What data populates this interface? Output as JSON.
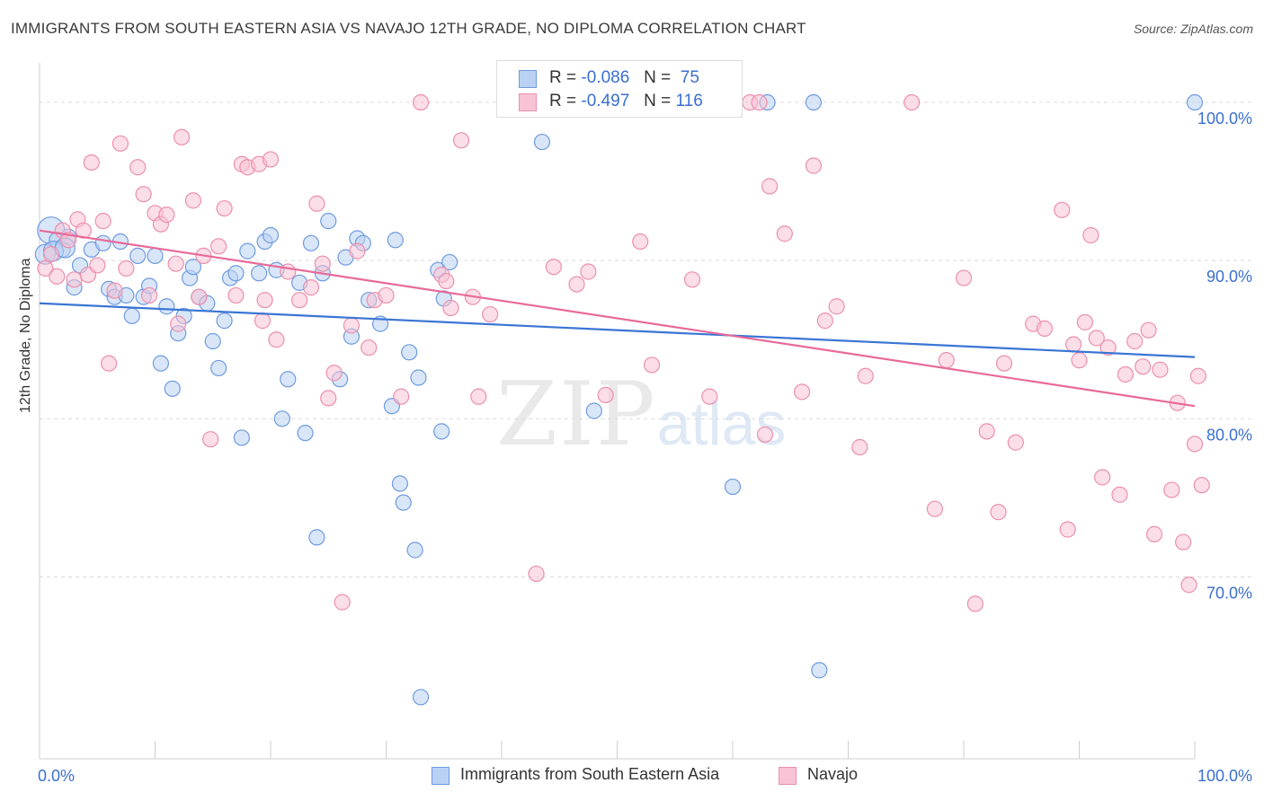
{
  "title": "IMMIGRANTS FROM SOUTH EASTERN ASIA VS NAVAJO 12TH GRADE, NO DIPLOMA CORRELATION CHART",
  "source": "Source: ZipAtlas.com",
  "watermark": {
    "zip": "ZIP",
    "atlas": "atlas"
  },
  "legend_top": {
    "rows": [
      {
        "r_label": "R =",
        "r_value": "-0.086",
        "n_label": "N =",
        "n_value": "75",
        "color": "#7aa7e8"
      },
      {
        "r_label": "R =",
        "r_value": "-0.497",
        "n_label": "N =",
        "n_value": "116",
        "color": "#f29bb8"
      }
    ]
  },
  "colors": {
    "blue_fill": "#b9d1f3",
    "blue_stroke": "#6e9be0",
    "blue_line": "#3a75d4",
    "pink_fill": "#f8c3d4",
    "pink_stroke": "#ec8fae",
    "pink_line": "#e8699a",
    "tick_label": "#3a6fd1",
    "grid": "#d9d9d9"
  },
  "chart_data": {
    "type": "scatter",
    "title": "IMMIGRANTS FROM SOUTH EASTERN ASIA VS NAVAJO 12TH GRADE, NO DIPLOMA CORRELATION CHART",
    "xlabel": "",
    "ylabel": "12th Grade, No Diploma",
    "xlim": [
      0,
      100
    ],
    "ylim": [
      58.5,
      102.5
    ],
    "x_tick_labels": [
      "0.0%",
      "100.0%"
    ],
    "y_ticks": [
      70,
      80,
      90,
      100
    ],
    "y_tick_labels": [
      "70.0%",
      "80.0%",
      "90.0%",
      "100.0%"
    ],
    "grid": true,
    "legend": "top-center",
    "series": [
      {
        "name": "Immigrants from South Eastern Asia",
        "color": "#6e9be0",
        "trend": {
          "x": [
            0,
            100
          ],
          "y": [
            87.3,
            83.9
          ]
        },
        "points": [
          [
            1,
            91.9
          ],
          [
            1.5,
            91.3
          ],
          [
            2,
            90.7
          ],
          [
            2.5,
            91.5
          ],
          [
            3,
            88.3
          ],
          [
            3.5,
            89.7
          ],
          [
            4.5,
            90.7
          ],
          [
            5.5,
            91.1
          ],
          [
            6,
            88.2
          ],
          [
            6.5,
            87.7
          ],
          [
            7,
            91.2
          ],
          [
            7.5,
            87.8
          ],
          [
            8,
            86.5
          ],
          [
            8.5,
            90.3
          ],
          [
            9,
            87.7
          ],
          [
            9.5,
            88.4
          ],
          [
            10,
            90.3
          ],
          [
            10.5,
            83.5
          ],
          [
            11,
            87.1
          ],
          [
            11.5,
            81.9
          ],
          [
            12,
            85.4
          ],
          [
            12.5,
            86.5
          ],
          [
            13,
            88.9
          ],
          [
            13.3,
            89.6
          ],
          [
            13.8,
            87.7
          ],
          [
            14.5,
            87.3
          ],
          [
            15,
            84.9
          ],
          [
            15.5,
            83.2
          ],
          [
            16,
            86.2
          ],
          [
            16.5,
            88.9
          ],
          [
            17,
            89.2
          ],
          [
            17.5,
            78.8
          ],
          [
            18,
            90.6
          ],
          [
            19,
            89.2
          ],
          [
            19.5,
            91.2
          ],
          [
            20,
            91.6
          ],
          [
            20.5,
            89.4
          ],
          [
            21,
            80.0
          ],
          [
            21.5,
            82.5
          ],
          [
            22.5,
            88.6
          ],
          [
            23,
            79.1
          ],
          [
            23.5,
            91.1
          ],
          [
            24,
            72.5
          ],
          [
            24.5,
            89.2
          ],
          [
            25,
            92.5
          ],
          [
            26,
            82.5
          ],
          [
            26.5,
            90.2
          ],
          [
            27,
            85.2
          ],
          [
            27.5,
            91.4
          ],
          [
            28,
            91.1
          ],
          [
            28.5,
            87.5
          ],
          [
            29.5,
            86.0
          ],
          [
            30.5,
            80.8
          ],
          [
            30.8,
            91.3
          ],
          [
            31.2,
            75.9
          ],
          [
            31.5,
            74.7
          ],
          [
            32,
            84.2
          ],
          [
            32.5,
            71.7
          ],
          [
            32.8,
            82.6
          ],
          [
            33,
            62.4
          ],
          [
            34.5,
            89.4
          ],
          [
            34.8,
            79.2
          ],
          [
            35,
            87.6
          ],
          [
            35.5,
            89.9
          ],
          [
            43.5,
            97.5
          ],
          [
            43.8,
            100.0
          ],
          [
            48,
            80.5
          ],
          [
            60,
            75.7
          ],
          [
            63,
            100.0
          ],
          [
            67,
            100.0
          ],
          [
            67.5,
            64.1
          ],
          [
            100,
            100.0
          ],
          [
            0.5,
            90.4
          ],
          [
            1.2,
            90.6
          ],
          [
            2.2,
            90.8
          ]
        ]
      },
      {
        "name": "Navajo",
        "color": "#ec8fae",
        "trend": {
          "x": [
            0,
            100
          ],
          "y": [
            91.9,
            80.8
          ]
        },
        "points": [
          [
            0.5,
            89.5
          ],
          [
            1,
            90.4
          ],
          [
            1.5,
            89.0
          ],
          [
            2,
            91.9
          ],
          [
            2.5,
            91.3
          ],
          [
            3,
            88.8
          ],
          [
            3.3,
            92.6
          ],
          [
            3.8,
            91.9
          ],
          [
            4.2,
            89.1
          ],
          [
            4.5,
            96.2
          ],
          [
            5,
            89.7
          ],
          [
            5.5,
            92.5
          ],
          [
            6,
            83.5
          ],
          [
            6.5,
            88.1
          ],
          [
            7,
            97.4
          ],
          [
            7.5,
            89.5
          ],
          [
            8.5,
            95.9
          ],
          [
            9,
            94.2
          ],
          [
            9.5,
            87.8
          ],
          [
            10,
            93.0
          ],
          [
            10.5,
            92.3
          ],
          [
            11,
            92.9
          ],
          [
            11.8,
            89.8
          ],
          [
            12,
            86.0
          ],
          [
            12.3,
            97.8
          ],
          [
            13.3,
            93.8
          ],
          [
            13.8,
            87.7
          ],
          [
            14.2,
            90.3
          ],
          [
            14.8,
            78.7
          ],
          [
            15.5,
            90.9
          ],
          [
            16,
            93.3
          ],
          [
            17,
            87.8
          ],
          [
            17.5,
            96.1
          ],
          [
            18,
            95.9
          ],
          [
            19,
            96.1
          ],
          [
            19.3,
            86.2
          ],
          [
            19.5,
            87.5
          ],
          [
            20,
            96.4
          ],
          [
            20.5,
            85.0
          ],
          [
            21.5,
            89.3
          ],
          [
            22.5,
            87.5
          ],
          [
            23.5,
            88.3
          ],
          [
            24,
            93.6
          ],
          [
            24.5,
            89.8
          ],
          [
            25,
            81.3
          ],
          [
            25.5,
            82.9
          ],
          [
            26.2,
            68.4
          ],
          [
            27,
            85.9
          ],
          [
            27.5,
            90.6
          ],
          [
            28.5,
            84.5
          ],
          [
            29,
            87.5
          ],
          [
            30,
            87.8
          ],
          [
            31.3,
            81.4
          ],
          [
            33,
            100.0
          ],
          [
            34.8,
            89.1
          ],
          [
            35.2,
            88.7
          ],
          [
            35.6,
            87.0
          ],
          [
            36.5,
            97.6
          ],
          [
            37.5,
            87.7
          ],
          [
            38,
            81.4
          ],
          [
            39,
            86.6
          ],
          [
            43,
            70.2
          ],
          [
            44.5,
            89.6
          ],
          [
            46.5,
            88.5
          ],
          [
            47.5,
            89.3
          ],
          [
            49,
            81.5
          ],
          [
            52,
            91.2
          ],
          [
            53,
            83.4
          ],
          [
            55,
            100.0
          ],
          [
            56.5,
            88.8
          ],
          [
            58,
            81.4
          ],
          [
            61.5,
            100.0
          ],
          [
            62.3,
            100.0
          ],
          [
            62.8,
            79.0
          ],
          [
            63.2,
            94.7
          ],
          [
            64.5,
            91.7
          ],
          [
            66,
            81.7
          ],
          [
            67,
            96.0
          ],
          [
            68,
            86.2
          ],
          [
            69,
            87.1
          ],
          [
            71,
            78.2
          ],
          [
            71.5,
            82.7
          ],
          [
            75.5,
            100.0
          ],
          [
            77.5,
            74.3
          ],
          [
            78.5,
            83.7
          ],
          [
            80,
            88.9
          ],
          [
            81,
            68.3
          ],
          [
            82,
            79.2
          ],
          [
            83,
            74.1
          ],
          [
            83.5,
            83.5
          ],
          [
            84.5,
            78.5
          ],
          [
            86,
            86.0
          ],
          [
            87,
            85.7
          ],
          [
            88.5,
            93.2
          ],
          [
            89,
            73.0
          ],
          [
            89.5,
            84.7
          ],
          [
            90,
            83.7
          ],
          [
            90.5,
            86.1
          ],
          [
            91,
            91.6
          ],
          [
            91.5,
            85.1
          ],
          [
            92,
            76.3
          ],
          [
            92.5,
            84.5
          ],
          [
            93.5,
            75.2
          ],
          [
            94,
            82.8
          ],
          [
            94.8,
            84.9
          ],
          [
            95.5,
            83.3
          ],
          [
            96,
            85.6
          ],
          [
            96.5,
            72.7
          ],
          [
            97,
            83.1
          ],
          [
            98,
            75.5
          ],
          [
            98.5,
            81.0
          ],
          [
            99,
            72.2
          ],
          [
            99.5,
            69.5
          ],
          [
            100,
            78.4
          ],
          [
            100.3,
            82.7
          ],
          [
            100.6,
            75.8
          ]
        ]
      }
    ]
  },
  "ylabel": "12th Grade, No Diploma",
  "x_axis": {
    "left_label": "0.0%",
    "right_label": "100.0%"
  },
  "legend_bottom": {
    "items": [
      {
        "label": "Immigrants from South Eastern Asia"
      },
      {
        "label": "Navajo"
      }
    ]
  }
}
